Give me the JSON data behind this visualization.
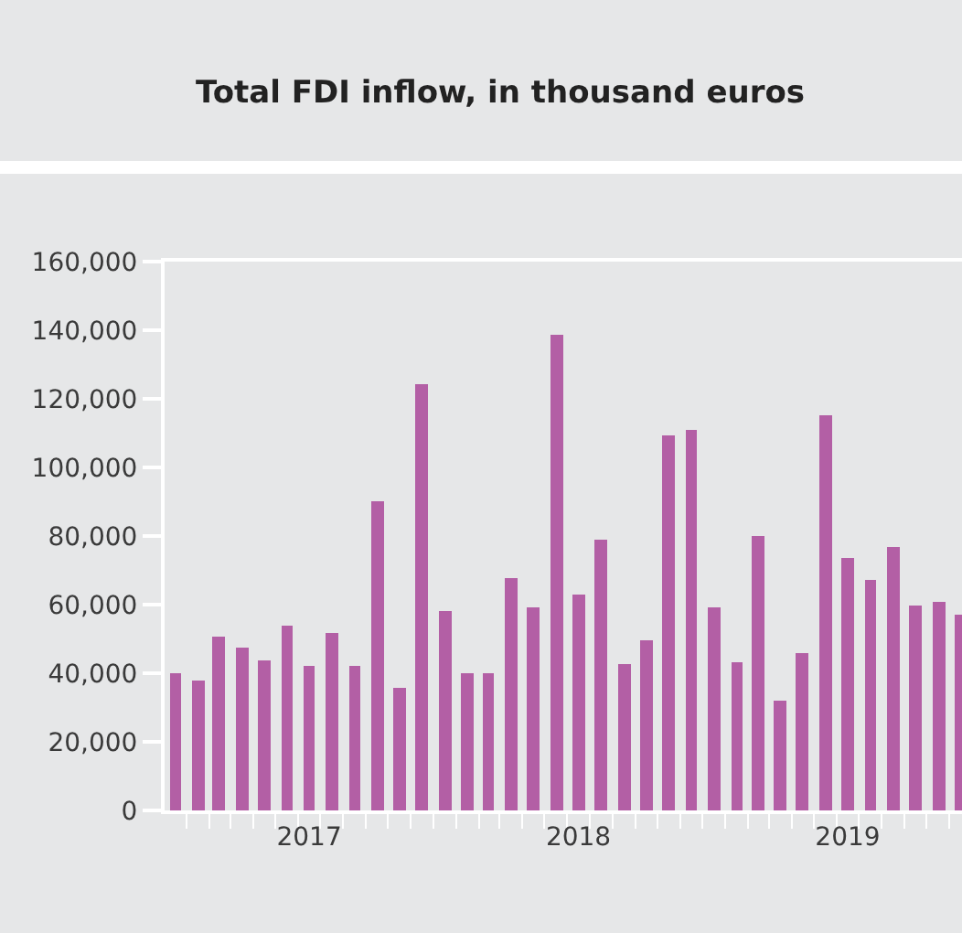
{
  "chart_data": {
    "type": "bar",
    "title": "Total FDI inflow, in thousand euros",
    "x": [
      "2017-01",
      "2017-02",
      "2017-03",
      "2017-04",
      "2017-05",
      "2017-06",
      "2017-07",
      "2017-08",
      "2017-09",
      "2017-10",
      "2017-11",
      "2017-12",
      "2018-01",
      "2018-02",
      "2018-03",
      "2018-04",
      "2018-05",
      "2018-06",
      "2018-07",
      "2018-08",
      "2018-09",
      "2018-10",
      "2018-11",
      "2018-12",
      "2019-01",
      "2019-02",
      "2019-03",
      "2019-04",
      "2019-05",
      "2019-06",
      "2019-07",
      "2019-08",
      "2019-09",
      "2019-10",
      "2019-11",
      "2019-12"
    ],
    "values": [
      40000,
      38000,
      50500,
      47500,
      44000,
      54000,
      42000,
      51500,
      42000,
      90000,
      35500,
      124500,
      58000,
      40000,
      40000,
      67500,
      59000,
      138500,
      63000,
      79000,
      42500,
      49500,
      109500,
      111000,
      59000,
      43000,
      80000,
      32000,
      46000,
      115000,
      73500,
      67000,
      77000,
      60000,
      61000,
      57000
    ],
    "color": "#b35fa5",
    "xlim": [
      "2016-12-17",
      "2019-12-03"
    ],
    "xticks": [
      {
        "value": "2017-07-01",
        "label": "2017"
      },
      {
        "value": "2018-07-01",
        "label": "2018"
      },
      {
        "value": "2019-07-01",
        "label": "2019"
      }
    ],
    "ylim": [
      0,
      160000
    ],
    "yticks": [
      {
        "value": 0,
        "label": "0"
      },
      {
        "value": 20000,
        "label": "20,000"
      },
      {
        "value": 40000,
        "label": "40,000"
      },
      {
        "value": 60000,
        "label": "60,000"
      },
      {
        "value": 80000,
        "label": "80,000"
      },
      {
        "value": 100000,
        "label": "100,000"
      },
      {
        "value": 120000,
        "label": "120,000"
      },
      {
        "value": 140000,
        "label": "140,000"
      },
      {
        "value": 160000,
        "label": "160,000"
      }
    ],
    "grid": false
  }
}
